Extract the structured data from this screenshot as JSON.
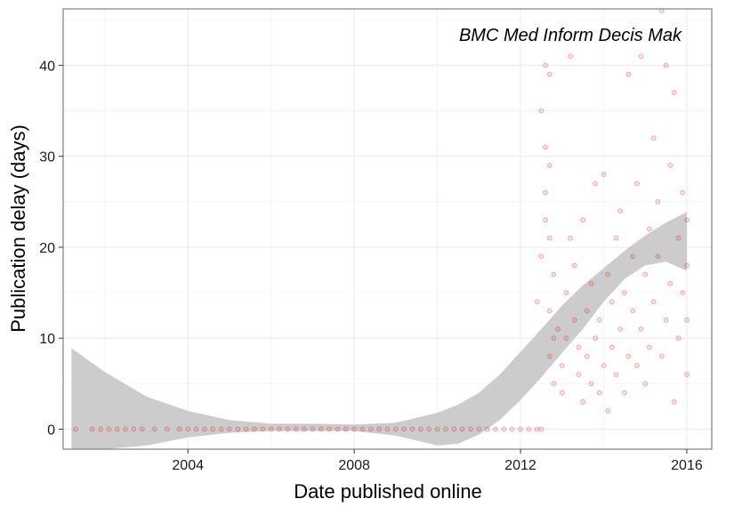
{
  "chart_data": {
    "type": "scatter",
    "annotation": "BMC Med Inform Decis Mak",
    "xlabel": "Date published online",
    "ylabel": "Publication delay (days)",
    "xlim": [
      2001.0,
      2016.6
    ],
    "ylim": [
      -2.2,
      46.2
    ],
    "x_ticks": [
      2004,
      2008,
      2012,
      2016
    ],
    "x_tick_labels": [
      "2004",
      "2008",
      "2012",
      "2016"
    ],
    "y_ticks": [
      0,
      10,
      20,
      30,
      40
    ],
    "y_tick_labels": [
      "0",
      "10",
      "20",
      "30",
      "40"
    ],
    "grid": true,
    "legend": "none",
    "colors": {
      "points": "#e31a1c",
      "band": "#cccccc",
      "grid": "#ebebeb",
      "border": "#7f7f7f"
    },
    "confidence_band": {
      "x": [
        2001.2,
        2002,
        2003,
        2004,
        2005,
        2006,
        2007,
        2008,
        2009,
        2010,
        2010.5,
        2011,
        2011.5,
        2012,
        2012.5,
        2013,
        2013.5,
        2014,
        2014.5,
        2015,
        2015.5,
        2016
      ],
      "upper": [
        8.9,
        6.3,
        3.6,
        2.0,
        1.0,
        0.6,
        0.6,
        0.5,
        0.7,
        1.8,
        2.7,
        4.0,
        6.0,
        8.5,
        11.0,
        13.6,
        15.8,
        17.7,
        19.6,
        21.3,
        22.7,
        23.9
      ],
      "lower": [
        -2.2,
        -2.2,
        -1.8,
        -0.9,
        -0.4,
        -0.2,
        -0.2,
        -0.2,
        -0.7,
        -1.8,
        -1.6,
        -0.6,
        1.0,
        3.2,
        5.7,
        8.4,
        11.0,
        14.0,
        16.5,
        18.0,
        18.4,
        17.4
      ]
    },
    "series": [
      {
        "points": [
          [
            2001.3,
            0
          ],
          [
            2001.7,
            0
          ],
          [
            2001.9,
            0
          ],
          [
            2002.1,
            0
          ],
          [
            2002.3,
            0
          ],
          [
            2002.5,
            0
          ],
          [
            2002.7,
            0
          ],
          [
            2002.9,
            0
          ],
          [
            2003.2,
            0
          ],
          [
            2003.5,
            0
          ],
          [
            2003.8,
            0
          ],
          [
            2004.0,
            0
          ],
          [
            2004.2,
            0
          ],
          [
            2004.4,
            0
          ],
          [
            2004.6,
            0
          ],
          [
            2004.8,
            0
          ],
          [
            2005.0,
            0
          ],
          [
            2005.2,
            0
          ],
          [
            2005.4,
            0
          ],
          [
            2005.6,
            0
          ],
          [
            2005.8,
            0
          ],
          [
            2006.0,
            0
          ],
          [
            2006.2,
            0
          ],
          [
            2006.4,
            0
          ],
          [
            2006.6,
            0
          ],
          [
            2006.8,
            0
          ],
          [
            2007.0,
            0
          ],
          [
            2007.2,
            0
          ],
          [
            2007.4,
            0
          ],
          [
            2007.6,
            0
          ],
          [
            2007.8,
            0
          ],
          [
            2008.0,
            0
          ],
          [
            2008.2,
            0
          ],
          [
            2008.4,
            0
          ],
          [
            2008.6,
            0
          ],
          [
            2008.8,
            0
          ],
          [
            2009.0,
            0
          ],
          [
            2009.2,
            0
          ],
          [
            2009.4,
            0
          ],
          [
            2009.6,
            0
          ],
          [
            2009.8,
            0
          ],
          [
            2010.0,
            0
          ],
          [
            2010.2,
            0
          ],
          [
            2010.4,
            0
          ],
          [
            2010.6,
            0
          ],
          [
            2010.8,
            0
          ],
          [
            2011.0,
            0
          ],
          [
            2011.2,
            0
          ],
          [
            2011.4,
            0
          ],
          [
            2011.6,
            0
          ],
          [
            2011.8,
            0
          ],
          [
            2012.0,
            0
          ],
          [
            2012.2,
            0
          ],
          [
            2012.4,
            0
          ],
          [
            2012.5,
            0
          ],
          [
            2012.4,
            14
          ],
          [
            2012.5,
            19
          ],
          [
            2012.6,
            23
          ],
          [
            2012.5,
            35
          ],
          [
            2012.6,
            40
          ],
          [
            2012.7,
            39
          ],
          [
            2012.6,
            31
          ],
          [
            2012.7,
            29
          ],
          [
            2012.6,
            26
          ],
          [
            2012.7,
            21
          ],
          [
            2012.8,
            17
          ],
          [
            2012.7,
            13
          ],
          [
            2012.8,
            10
          ],
          [
            2012.7,
            8
          ],
          [
            2012.8,
            5
          ],
          [
            2012.9,
            11
          ],
          [
            2013.0,
            4
          ],
          [
            2013.0,
            7
          ],
          [
            2013.1,
            10
          ],
          [
            2013.1,
            15
          ],
          [
            2013.2,
            21
          ],
          [
            2013.2,
            41
          ],
          [
            2013.3,
            18
          ],
          [
            2013.3,
            12
          ],
          [
            2013.4,
            9
          ],
          [
            2013.4,
            6
          ],
          [
            2013.5,
            3
          ],
          [
            2013.5,
            23
          ],
          [
            2013.6,
            13
          ],
          [
            2013.6,
            8
          ],
          [
            2013.7,
            5
          ],
          [
            2013.7,
            16
          ],
          [
            2013.8,
            27
          ],
          [
            2013.8,
            10
          ],
          [
            2013.9,
            4
          ],
          [
            2013.9,
            12
          ],
          [
            2014.0,
            7
          ],
          [
            2014.0,
            28
          ],
          [
            2014.1,
            17
          ],
          [
            2014.1,
            2
          ],
          [
            2014.2,
            9
          ],
          [
            2014.2,
            14
          ],
          [
            2014.3,
            21
          ],
          [
            2014.3,
            6
          ],
          [
            2014.4,
            11
          ],
          [
            2014.4,
            24
          ],
          [
            2014.5,
            4
          ],
          [
            2014.5,
            15
          ],
          [
            2014.6,
            8
          ],
          [
            2014.6,
            39
          ],
          [
            2014.7,
            13
          ],
          [
            2014.7,
            19
          ],
          [
            2014.8,
            7
          ],
          [
            2014.8,
            27
          ],
          [
            2014.9,
            41
          ],
          [
            2014.9,
            11
          ],
          [
            2015.0,
            5
          ],
          [
            2015.0,
            17
          ],
          [
            2015.1,
            9
          ],
          [
            2015.1,
            22
          ],
          [
            2015.2,
            32
          ],
          [
            2015.2,
            14
          ],
          [
            2015.3,
            25
          ],
          [
            2015.3,
            19
          ],
          [
            2015.4,
            46
          ],
          [
            2015.4,
            8
          ],
          [
            2015.5,
            40
          ],
          [
            2015.5,
            12
          ],
          [
            2015.6,
            29
          ],
          [
            2015.6,
            16
          ],
          [
            2015.7,
            3
          ],
          [
            2015.7,
            37
          ],
          [
            2015.8,
            21
          ],
          [
            2015.8,
            10
          ],
          [
            2015.9,
            26
          ],
          [
            2015.9,
            15
          ],
          [
            2016.0,
            6
          ],
          [
            2016.0,
            23
          ],
          [
            2016.0,
            18
          ],
          [
            2016.0,
            12
          ]
        ]
      }
    ]
  }
}
